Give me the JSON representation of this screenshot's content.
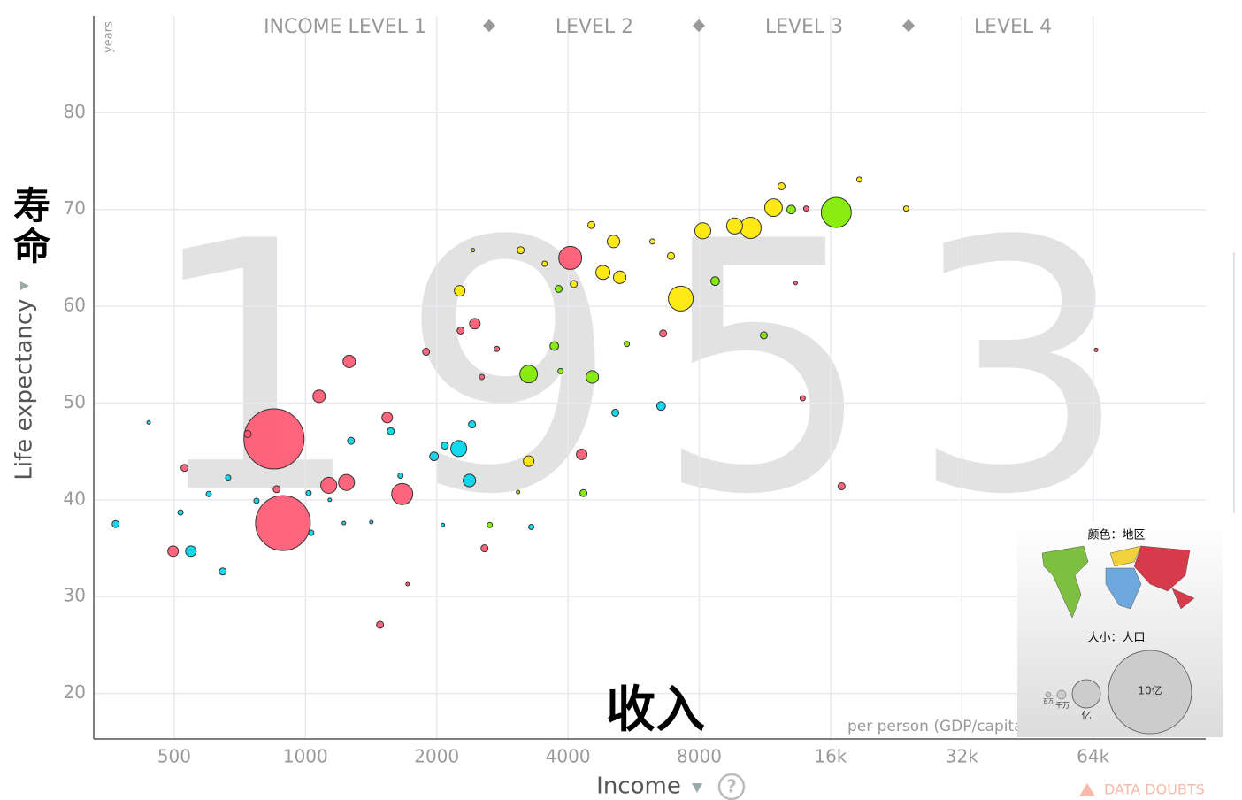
{
  "chart_data": {
    "type": "scatter",
    "year": "1953",
    "y_unit": "years",
    "ylabel": "Life expectancy",
    "ylabel_overlay": "寿命",
    "xlabel": "Income",
    "xlabel_overlay": "收入",
    "x_note": "per person (GDP/capita",
    "levels": [
      "INCOME LEVEL 1",
      "LEVEL 2",
      "LEVEL 3",
      "LEVEL 4"
    ],
    "warning": "DATA DOUBTS",
    "legend": {
      "color_title": "颜色：地区",
      "size_title": "大小：人口",
      "size_labels": [
        "百万",
        "千万",
        "亿",
        "10亿"
      ]
    },
    "xscale": "log",
    "grid": true,
    "xlim": [
      327,
      116000
    ],
    "ylim": [
      15.3,
      90
    ],
    "xticks": [
      500,
      1000,
      2000,
      4000,
      8000,
      {
        "value": 16000,
        "label": "16k"
      },
      {
        "value": 32000,
        "label": "32k"
      },
      {
        "value": 64000,
        "label": "64k"
      }
    ],
    "yticks": [
      20,
      30,
      40,
      50,
      60,
      70,
      80
    ],
    "series": [
      {
        "color": "#00d5e9",
        "x": [
          2247,
          2377,
          546,
          6540,
          1972,
          367,
          646,
          5135,
          2087,
          1272,
          1569,
          2410,
          3295,
          1017,
          1031,
          517,
          437,
          2066,
          772,
          600,
          665,
          1416,
          1225,
          1137,
          1652
        ],
        "values": [
          45.3,
          42.0,
          34.7,
          49.7,
          44.5,
          37.5,
          32.6,
          49.0,
          45.6,
          46.1,
          47.1,
          47.8,
          37.2,
          40.7,
          36.6,
          38.7,
          48.0,
          37.4,
          39.9,
          40.6,
          42.3,
          37.7,
          37.6,
          40.0,
          42.5
        ],
        "sizes": [
          41,
          25,
          18,
          12,
          12,
          8,
          8,
          8,
          8,
          8,
          8,
          8,
          4.5,
          4.5,
          4.5,
          4.5,
          2,
          2,
          4.5,
          4.5,
          4.5,
          2,
          2,
          2,
          4.5
        ]
      },
      {
        "color": "#7feb00",
        "x": [
          16490,
          3250,
          4547,
          8700,
          3721,
          13000,
          11250,
          4340,
          3808,
          5458,
          2647,
          3073,
          2422,
          3845
        ],
        "values": [
          69.7,
          53.0,
          52.7,
          62.6,
          55.9,
          70.0,
          57.0,
          40.7,
          61.8,
          56.1,
          37.4,
          40.8,
          65.8,
          53.3
        ],
        "sizes": [
          145,
          50,
          25,
          12,
          12,
          12,
          8,
          8,
          8,
          4.5,
          4.5,
          2,
          2,
          4.5
        ]
      },
      {
        "color": "#ff5872",
        "x": [
          847,
          888,
          4048,
          1667,
          1131,
          1242,
          1075,
          1260,
          1540,
          497,
          2446,
          4300,
          528,
          859,
          1483,
          2574,
          6610,
          16960,
          13810,
          14070,
          2269,
          1891,
          2747,
          13310,
          2537,
          737,
          65000,
          1715
        ],
        "values": [
          46.3,
          37.6,
          65.0,
          40.6,
          41.5,
          41.8,
          50.7,
          54.3,
          48.5,
          34.7,
          58.2,
          44.7,
          43.3,
          41.1,
          27.1,
          35.0,
          57.2,
          41.4,
          50.5,
          70.1,
          57.5,
          55.3,
          55.6,
          62.4,
          52.7,
          46.8,
          55.5,
          31.3
        ],
        "sizes": [
          581,
          483,
          85,
          72,
          41,
          41,
          25,
          25,
          18,
          18,
          18,
          18,
          8,
          8,
          8,
          8,
          8,
          8,
          4.5,
          4.5,
          8,
          8,
          4.5,
          2,
          4.5,
          8,
          2,
          2
        ]
      },
      {
        "color": "#ffe700",
        "x": [
          7256,
          10490,
          11840,
          8150,
          9640,
          4810,
          5087,
          5256,
          3250,
          2258,
          23850,
          18620,
          12350,
          4526,
          3116,
          4124,
          6890,
          3536,
          6245
        ],
        "values": [
          60.8,
          68.1,
          70.2,
          67.8,
          68.3,
          63.5,
          66.7,
          63.0,
          44.0,
          61.6,
          70.1,
          73.1,
          72.4,
          68.4,
          65.8,
          62.3,
          65.2,
          64.4,
          66.7
        ],
        "sizes": [
          99,
          72,
          50,
          41,
          41,
          32,
          25,
          25,
          18,
          18,
          4.5,
          4.5,
          8,
          8,
          8,
          8,
          8,
          4.5,
          4.5
        ]
      }
    ]
  }
}
